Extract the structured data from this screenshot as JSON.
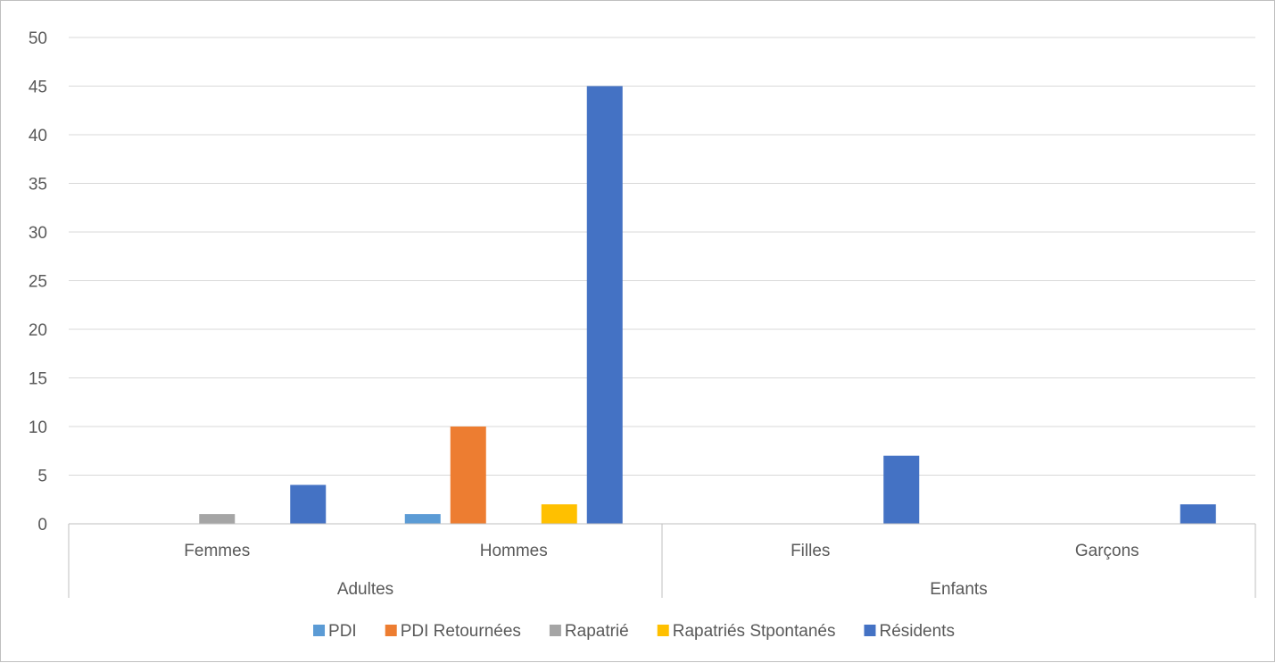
{
  "chart_data": {
    "type": "bar",
    "title": "",
    "xlabel": "",
    "ylabel": "",
    "ylim": [
      0,
      50
    ],
    "yticks": [
      0,
      5,
      10,
      15,
      20,
      25,
      30,
      35,
      40,
      45,
      50
    ],
    "grid": true,
    "legend_position": "bottom",
    "groups": [
      {
        "label": "Adultes",
        "categories": [
          "Femmes",
          "Hommes"
        ]
      },
      {
        "label": "Enfants",
        "categories": [
          "Filles",
          "Garçons"
        ]
      }
    ],
    "categories": [
      "Femmes",
      "Hommes",
      "Filles",
      "Garçons"
    ],
    "series": [
      {
        "name": "PDI",
        "color": "#5b9bd5",
        "values": [
          0,
          1,
          0,
          0
        ]
      },
      {
        "name": "PDI Retournées",
        "color": "#ed7d31",
        "values": [
          0,
          10,
          0,
          0
        ]
      },
      {
        "name": "Rapatrié",
        "color": "#a5a5a5",
        "values": [
          1,
          0,
          0,
          0
        ]
      },
      {
        "name": "Rapatriés Stpontanés",
        "color": "#ffc000",
        "values": [
          0,
          2,
          0,
          0
        ]
      },
      {
        "name": "Résidents",
        "color": "#4472c4",
        "values": [
          4,
          45,
          7,
          2
        ]
      }
    ]
  }
}
